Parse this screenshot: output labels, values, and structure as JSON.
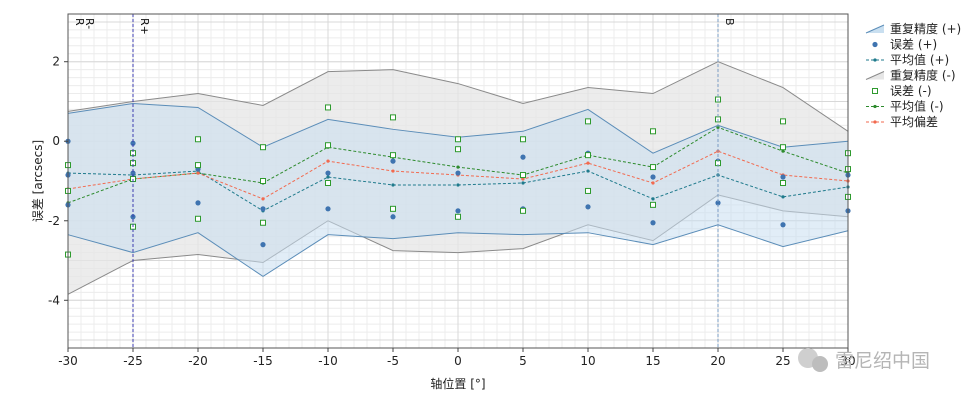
{
  "chart_data": {
    "type": "line",
    "xlabel": "轴位置 [°]",
    "ylabel": "误差 [arcsecs]",
    "xlim": [
      -30,
      30
    ],
    "ylim": [
      -5.2,
      3.2
    ],
    "grid": true,
    "legend_position": "right",
    "x": [
      -30,
      -25,
      -20,
      -15,
      -10,
      -5,
      0,
      5,
      10,
      15,
      20,
      25,
      30
    ],
    "x_ticks": [
      -30,
      -25,
      -20,
      -15,
      -10,
      -5,
      0,
      5,
      10,
      15,
      20,
      25,
      30
    ],
    "y_ticks": [
      -4,
      -2,
      0,
      2
    ],
    "x_tick_labels": [
      "-30",
      "-25",
      "-20",
      "-15",
      "-10",
      "-5",
      "0",
      "5",
      "10",
      "15",
      "20",
      "25",
      "30"
    ],
    "y_tick_labels": [
      "-4",
      "-2",
      "0",
      "2"
    ],
    "markers": [
      {
        "x": -30,
        "labels": [
          "R",
          "R-"
        ]
      },
      {
        "x": -25,
        "labels": [
          "R+"
        ]
      },
      {
        "x": 20,
        "labels": [
          "B"
        ]
      }
    ],
    "series": [
      {
        "name": "重复精度 (+)",
        "kind": "band",
        "color": "#5b8db8",
        "fill": "#c9dff0",
        "upper": [
          0.7,
          0.95,
          0.85,
          -0.15,
          0.55,
          0.3,
          0.1,
          0.25,
          0.8,
          -0.3,
          0.4,
          -0.15,
          0.0
        ],
        "lower": [
          -2.35,
          -2.8,
          -2.3,
          -3.4,
          -2.35,
          -2.45,
          -2.3,
          -2.35,
          -2.3,
          -2.6,
          -2.1,
          -2.65,
          -2.25
        ]
      },
      {
        "name": "误差 (+)",
        "kind": "points",
        "color": "#3f74b0",
        "points": [
          [
            -30,
            0.0
          ],
          [
            -30,
            -0.85
          ],
          [
            -30,
            -1.6
          ],
          [
            -25,
            -0.05
          ],
          [
            -25,
            -0.8
          ],
          [
            -25,
            -1.9
          ],
          [
            -20,
            -0.7
          ],
          [
            -20,
            -1.55
          ],
          [
            -15,
            -1.7
          ],
          [
            -15,
            -2.6
          ],
          [
            -10,
            -0.8
          ],
          [
            -10,
            -1.7
          ],
          [
            -5,
            -0.5
          ],
          [
            -5,
            -1.9
          ],
          [
            0,
            -0.8
          ],
          [
            0,
            -1.75
          ],
          [
            5,
            -0.4
          ],
          [
            5,
            -1.7
          ],
          [
            10,
            -0.3
          ],
          [
            10,
            -1.65
          ],
          [
            15,
            -0.9
          ],
          [
            15,
            -2.05
          ],
          [
            20,
            -0.5
          ],
          [
            20,
            -1.55
          ],
          [
            25,
            -0.9
          ],
          [
            25,
            -2.1
          ],
          [
            30,
            -0.85
          ],
          [
            30,
            -1.75
          ]
        ]
      },
      {
        "name": "平均值 (+)",
        "kind": "line",
        "color": "#1f7a8c",
        "values": [
          -0.8,
          -0.85,
          -0.75,
          -1.75,
          -0.9,
          -1.1,
          -1.1,
          -1.05,
          -0.75,
          -1.45,
          -0.85,
          -1.4,
          -1.15
        ]
      },
      {
        "name": "重复精度 (-)",
        "kind": "band",
        "color": "#8a8a8a",
        "fill": "#e6e6e6",
        "upper": [
          0.75,
          1.0,
          1.2,
          0.9,
          1.75,
          1.8,
          1.45,
          0.95,
          1.35,
          1.2,
          2.0,
          1.35,
          0.25
        ],
        "lower": [
          -3.85,
          -3.0,
          -2.85,
          -3.05,
          -2.0,
          -2.75,
          -2.8,
          -2.7,
          -2.1,
          -2.5,
          -1.35,
          -1.75,
          -1.9
        ]
      },
      {
        "name": "误差 (-)",
        "kind": "points",
        "color": "#2e9a2e",
        "points": [
          [
            -30,
            -0.6
          ],
          [
            -30,
            -1.25
          ],
          [
            -30,
            -2.85
          ],
          [
            -25,
            -0.3
          ],
          [
            -25,
            -0.55
          ],
          [
            -25,
            -0.95
          ],
          [
            -25,
            -2.15
          ],
          [
            -20,
            0.05
          ],
          [
            -20,
            -0.6
          ],
          [
            -20,
            -1.95
          ],
          [
            -15,
            -0.15
          ],
          [
            -15,
            -1.0
          ],
          [
            -15,
            -2.05
          ],
          [
            -10,
            0.85
          ],
          [
            -10,
            -0.1
          ],
          [
            -10,
            -1.05
          ],
          [
            -5,
            0.6
          ],
          [
            -5,
            -0.35
          ],
          [
            -5,
            -1.7
          ],
          [
            0,
            0.05
          ],
          [
            0,
            -0.2
          ],
          [
            0,
            -1.9
          ],
          [
            5,
            0.05
          ],
          [
            5,
            -0.85
          ],
          [
            5,
            -1.75
          ],
          [
            10,
            0.5
          ],
          [
            10,
            -0.35
          ],
          [
            10,
            -1.25
          ],
          [
            15,
            0.25
          ],
          [
            15,
            -0.65
          ],
          [
            15,
            -1.6
          ],
          [
            20,
            1.05
          ],
          [
            20,
            0.55
          ],
          [
            20,
            -0.55
          ],
          [
            25,
            0.5
          ],
          [
            25,
            -0.15
          ],
          [
            25,
            -1.05
          ],
          [
            30,
            -0.3
          ],
          [
            30,
            -0.7
          ],
          [
            30,
            -1.4
          ]
        ]
      },
      {
        "name": "平均值 (-)",
        "kind": "line",
        "color": "#2e8b2e",
        "values": [
          -1.55,
          -0.95,
          -0.8,
          -1.05,
          -0.15,
          -0.4,
          -0.65,
          -0.85,
          -0.35,
          -0.65,
          0.35,
          -0.25,
          -0.8
        ]
      },
      {
        "name": "平均偏差",
        "kind": "line",
        "color": "#f26a4f",
        "values": [
          -1.2,
          -0.95,
          -0.8,
          -1.45,
          -0.5,
          -0.75,
          -0.85,
          -0.95,
          -0.55,
          -1.05,
          -0.25,
          -0.85,
          -1.0
        ]
      }
    ]
  },
  "watermark": {
    "text": "雷尼绍中国"
  }
}
